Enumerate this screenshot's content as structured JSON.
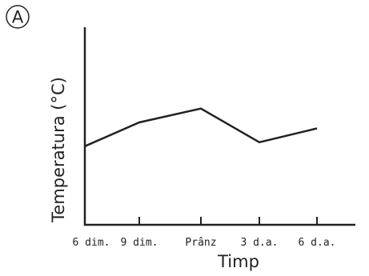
{
  "panel": {
    "label": "A"
  },
  "chart_data": {
    "type": "line",
    "categories": [
      "6 dim.",
      "9 dim.",
      "Prânz",
      "3 d.a.",
      "6 d.a."
    ],
    "series": [
      {
        "values": [
          0.4,
          0.52,
          0.59,
          0.42,
          0.49
        ]
      }
    ],
    "xlabel": "Timp",
    "ylabel": "Temperatura (°C)",
    "ylim": [
      0,
      1
    ],
    "grid": false,
    "line_color": "#222222"
  }
}
